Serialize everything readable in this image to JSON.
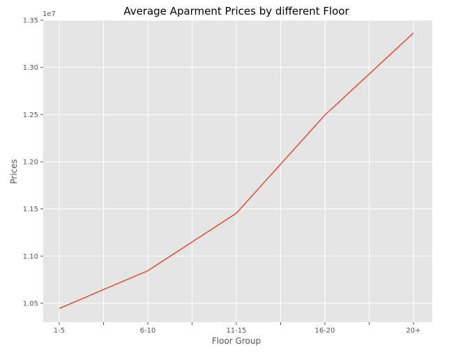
{
  "chart_data": {
    "type": "line",
    "title": "Average Aparment Prices by different Floor",
    "xlabel": "Floor Group",
    "ylabel": "Prices",
    "y_offset_label": "1e7",
    "categories": [
      "1-5",
      "6-10",
      "11-15",
      "16-20",
      "20+"
    ],
    "series": [
      {
        "values": [
          10445000,
          10845000,
          11455000,
          12495000,
          13365000
        ]
      }
    ],
    "ylim": [
      10300000,
      13500000
    ],
    "yticks": [
      10500000,
      11000000,
      11500000,
      12000000,
      12500000,
      13000000,
      13500000
    ],
    "ytick_labels": [
      "1.05",
      "1.10",
      "1.15",
      "1.20",
      "1.25",
      "1.30",
      "1.35"
    ],
    "grid": true,
    "colors": {
      "plot_background": "#e5e5e5",
      "grid": "#ffffff",
      "line": "#e24a33",
      "text": "#555555"
    }
  }
}
